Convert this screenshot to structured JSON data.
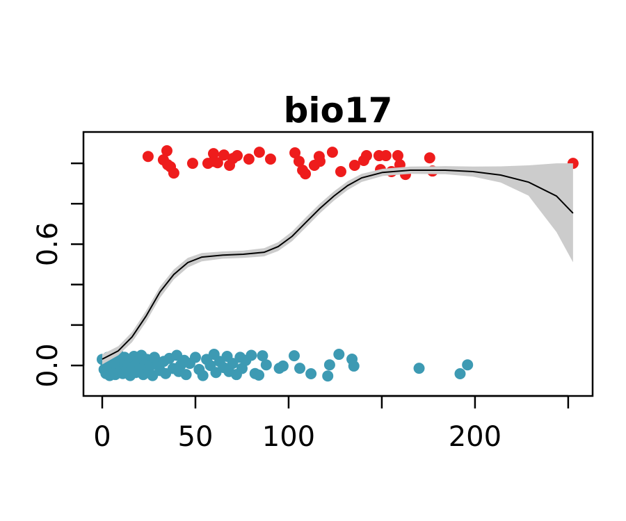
{
  "chart_data": {
    "type": "scatter",
    "title": "bio17",
    "xlim": [
      -10.07,
      263.1
    ],
    "ylim": [
      -0.151,
      1.155
    ],
    "xticks": [
      0,
      50,
      100,
      {
        "value": 150,
        "label": null
      },
      200,
      {
        "value": 250,
        "label": null
      }
    ],
    "yticks": [
      {
        "value": 0,
        "label": "0.0"
      },
      {
        "value": 0.2,
        "label": null
      },
      {
        "value": 0.4,
        "label": null
      },
      0.6,
      {
        "value": 0.8,
        "label": null
      },
      {
        "value": 1,
        "label": null
      }
    ],
    "series": [
      {
        "color": "#ee1c1c",
        "x": [
          24.6,
          34.7,
          32.8,
          35.1,
          36.6,
          38.4,
          48.5,
          56.7,
          59.7,
          61.9,
          65.3,
          68.3,
          72.4,
          78.7,
          84.3,
          90.3,
          103.4,
          105.6,
          107.5,
          109.0,
          113.8,
          116.4,
          123.5,
          128.0,
          135.4,
          140.3,
          141.8,
          148.5,
          149.3,
          152.2,
          155.2,
          158.6,
          159.7,
          162.7,
          175.7,
          177.2,
          252.6,
          70.1,
          59.7,
          116.8
        ],
        "values": [
          1.034,
          1.062,
          1.017,
          0.993,
          0.983,
          0.952,
          1.0,
          1.0,
          1.048,
          1.003,
          1.041,
          0.99,
          1.038,
          1.021,
          1.055,
          1.021,
          1.052,
          1.01,
          0.966,
          0.948,
          0.99,
          1.034,
          1.055,
          0.959,
          0.99,
          1.014,
          1.038,
          1.038,
          0.969,
          1.038,
          0.959,
          1.038,
          0.993,
          0.945,
          1.027,
          0.962,
          1.0,
          1.024,
          1.01,
          1.01
        ]
      },
      {
        "color": "#3d9ab3",
        "x": [
          0,
          1,
          2,
          2,
          3,
          3,
          4,
          4,
          5,
          5,
          6,
          6,
          7,
          8,
          8,
          9,
          10,
          10,
          11,
          12,
          12,
          13,
          14,
          15,
          15,
          16,
          17,
          18,
          19,
          20,
          21,
          22,
          23,
          24,
          25,
          26,
          27,
          28,
          30,
          31,
          33,
          34,
          36,
          38,
          40,
          41,
          42,
          44,
          45,
          47,
          50,
          52,
          54,
          56,
          58,
          60,
          61,
          63,
          65,
          67,
          68,
          70,
          72,
          74,
          75,
          77,
          80,
          82,
          84,
          86,
          88,
          95,
          97,
          103,
          106,
          112,
          121,
          122,
          127,
          134,
          135,
          170,
          192,
          196
        ],
        "values": [
          0.03,
          -0.02,
          0.01,
          -0.04,
          0.04,
          -0.01,
          0.02,
          -0.05,
          0.0,
          0.045,
          -0.03,
          0.015,
          -0.045,
          0.035,
          -0.015,
          0.05,
          -0.025,
          0.02,
          -0.04,
          0.01,
          0.04,
          -0.03,
          0.0,
          -0.05,
          0.03,
          -0.01,
          0.045,
          -0.035,
          0.02,
          -0.02,
          0.05,
          -0.045,
          0.01,
          0.03,
          -0.03,
          0.0,
          -0.05,
          0.04,
          0.015,
          -0.025,
          0.02,
          -0.04,
          0.035,
          -0.015,
          0.05,
          -0.03,
          0.0,
          0.025,
          -0.045,
          0.01,
          0.04,
          -0.02,
          -0.05,
          0.03,
          0.0,
          0.055,
          -0.035,
          0.02,
          -0.01,
          0.045,
          -0.03,
          0.01,
          -0.045,
          0.04,
          -0.015,
          0.025,
          0.05,
          -0.04,
          -0.048,
          0.048,
          0.003,
          -0.014,
          -0.003,
          0.048,
          -0.014,
          -0.041,
          -0.052,
          0.003,
          0.055,
          0.031,
          -0.003,
          -0.014,
          -0.041,
          0.003
        ]
      }
    ],
    "fit": {
      "color": "#000000",
      "band_color": "#cccccc",
      "x": [
        0,
        8.6,
        16,
        23.5,
        31,
        38.4,
        45.9,
        53.4,
        64.6,
        75.7,
        86.9,
        94.4,
        101.9,
        109.3,
        116.8,
        124.3,
        131.7,
        139.2,
        150.4,
        165.3,
        184,
        198.9,
        213.8,
        228.7,
        243.7,
        252.6
      ],
      "values": [
        0.031,
        0.072,
        0.141,
        0.244,
        0.364,
        0.45,
        0.509,
        0.536,
        0.546,
        0.55,
        0.56,
        0.588,
        0.639,
        0.708,
        0.777,
        0.838,
        0.89,
        0.928,
        0.955,
        0.966,
        0.966,
        0.959,
        0.942,
        0.907,
        0.838,
        0.753
      ],
      "lower": [
        0.005,
        0.05,
        0.115,
        0.215,
        0.335,
        0.425,
        0.485,
        0.515,
        0.528,
        0.532,
        0.54,
        0.566,
        0.615,
        0.683,
        0.753,
        0.815,
        0.868,
        0.908,
        0.937,
        0.948,
        0.946,
        0.934,
        0.905,
        0.84,
        0.66,
        0.51
      ],
      "upper": [
        0.055,
        0.095,
        0.165,
        0.27,
        0.39,
        0.475,
        0.532,
        0.556,
        0.564,
        0.568,
        0.58,
        0.61,
        0.663,
        0.733,
        0.801,
        0.861,
        0.912,
        0.948,
        0.973,
        0.984,
        0.986,
        0.984,
        0.985,
        0.99,
        1.0,
        1.0
      ]
    }
  }
}
